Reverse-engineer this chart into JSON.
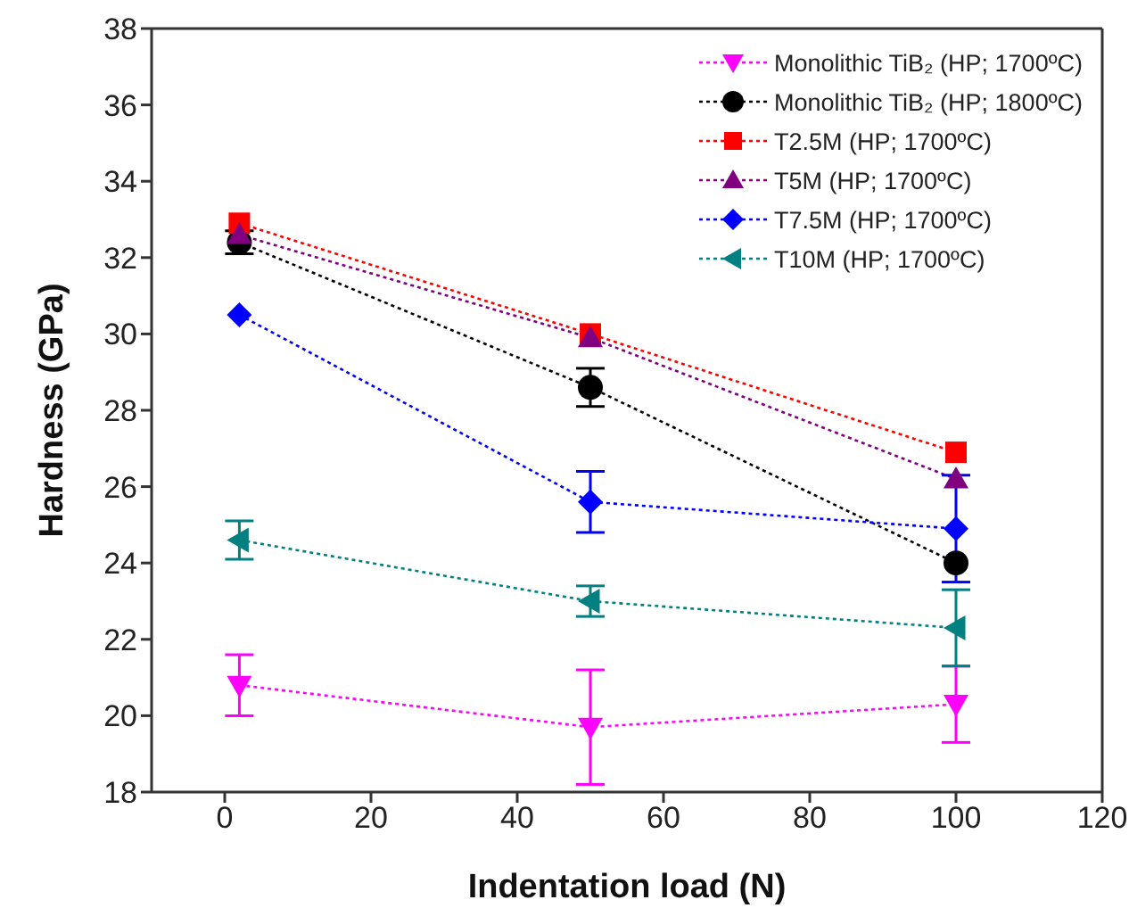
{
  "chart_data": {
    "type": "line",
    "xlabel": "Indentation load (N)",
    "ylabel": "Hardness (GPa)",
    "xlim": [
      -10,
      120
    ],
    "xticks": [
      0,
      20,
      40,
      60,
      80,
      100,
      120
    ],
    "ylim": [
      18,
      38
    ],
    "yticks": [
      18,
      20,
      22,
      24,
      26,
      28,
      30,
      32,
      34,
      36,
      38
    ],
    "legend": "top right",
    "line_style": "dotted",
    "x": [
      2,
      50,
      100
    ],
    "series": [
      {
        "name": "Monolithic TiB₂ (HP; 1700ºC)",
        "color": "#ff00ff",
        "marker": "triangle-down",
        "values": [
          20.8,
          19.7,
          20.3
        ],
        "errors": [
          0.8,
          1.5,
          1.0
        ]
      },
      {
        "name": "Monolithic TiB₂ (HP; 1800ºC)",
        "color": "#000000",
        "marker": "circle",
        "values": [
          32.4,
          28.6,
          24.0
        ],
        "errors": [
          0.3,
          0.5,
          null
        ]
      },
      {
        "name": "T2.5M (HP; 1700ºC)",
        "color": "#ff0000",
        "marker": "square",
        "values": [
          32.9,
          30.0,
          26.9
        ],
        "errors": [
          null,
          null,
          null
        ]
      },
      {
        "name": "T5M (HP; 1700ºC)",
        "color": "#800080",
        "marker": "triangle",
        "values": [
          32.6,
          29.9,
          26.2
        ],
        "errors": [
          null,
          null,
          null
        ]
      },
      {
        "name": "T7.5M (HP; 1700ºC)",
        "color": "#0000ff",
        "marker": "diamond",
        "values": [
          30.5,
          25.6,
          24.9
        ],
        "errors": [
          null,
          0.8,
          1.4
        ]
      },
      {
        "name": "T10M (HP; 1700ºC)",
        "color": "#008080",
        "marker": "triangle-left",
        "values": [
          24.6,
          23.0,
          22.3
        ],
        "errors": [
          0.5,
          0.4,
          1.0
        ]
      }
    ]
  }
}
